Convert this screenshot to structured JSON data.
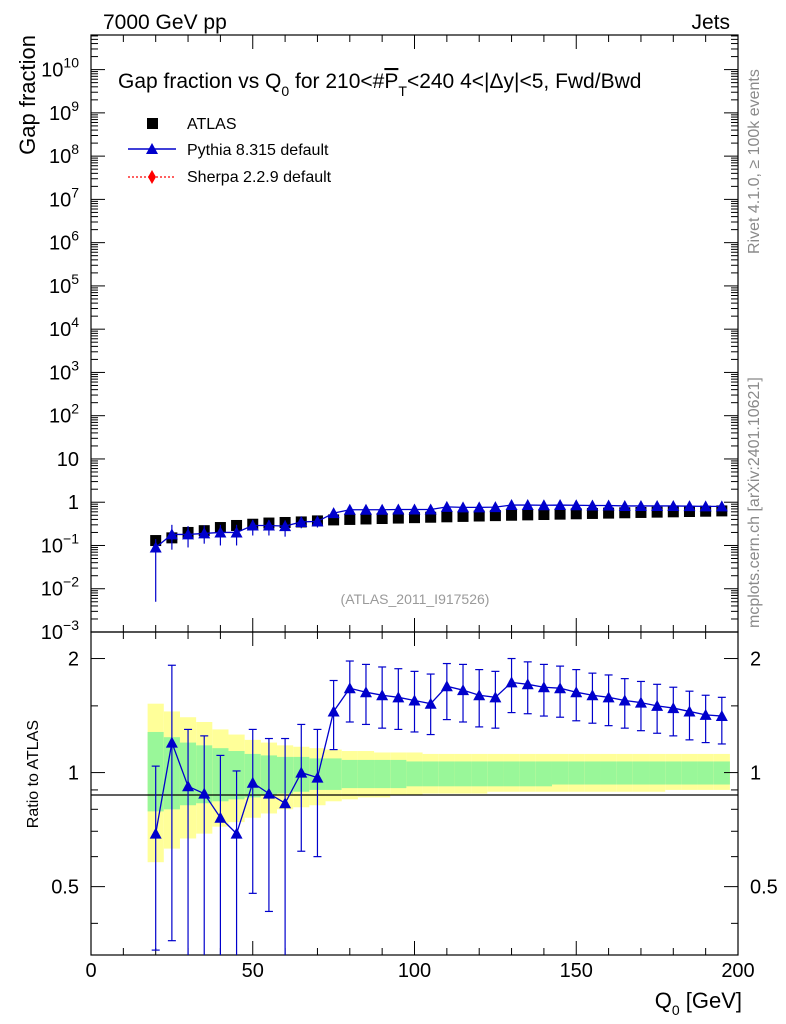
{
  "header": {
    "left": "7000 GeV pp",
    "right": "Jets"
  },
  "side_labels": {
    "rivet": "Rivet 4.1.0, ≥ 100k events",
    "mcplots": "mcplots.cern.ch [arXiv:2401.10621]"
  },
  "chart_data": {
    "type": "scatter",
    "title": "Gap fraction vs Q0 for 210<#PT<240  4<|Δy|<5, Fwd/Bwd",
    "title_parts": {
      "a": "Gap fraction vs Q",
      "sub": "0",
      "b": " for 210<#",
      "c": "P",
      "csub": "T",
      "d": "<240  4<|Δy|<5, Fwd/Bwd"
    },
    "analysis_label": "(ATLAS_2011_I917526)",
    "xlabel": "Q0 [GeV]",
    "xlabel_parts": {
      "a": "Q",
      "sub": "0",
      "b": " [GeV]"
    },
    "ylabel_top": "Gap fraction",
    "ylabel_bottom": "Ratio to ATLAS",
    "xlim": [
      0,
      200
    ],
    "ylim_top_log10": [
      -3,
      10.8
    ],
    "ylim_bottom": [
      0.33,
      2.35
    ],
    "x_ticks": [
      "0",
      "50",
      "100",
      "150",
      "200"
    ],
    "ratio_ticks": [
      "0.5",
      "1",
      "2"
    ],
    "legend": [
      {
        "name": "ATLAS",
        "marker": "square",
        "color": "#000000"
      },
      {
        "name": "Pythia 8.315 default",
        "marker": "triangle",
        "color": "#0000cc"
      },
      {
        "name": "Sherpa 2.2.9 default",
        "marker": "diamond",
        "color": "#ff0000"
      }
    ],
    "x": [
      20,
      25,
      30,
      35,
      40,
      45,
      50,
      55,
      60,
      65,
      70,
      75,
      80,
      85,
      90,
      95,
      100,
      105,
      110,
      115,
      120,
      125,
      130,
      135,
      140,
      145,
      150,
      155,
      160,
      165,
      170,
      175,
      180,
      185,
      190,
      195
    ],
    "atlas": [
      0.13,
      0.15,
      0.2,
      0.22,
      0.26,
      0.29,
      0.31,
      0.33,
      0.34,
      0.35,
      0.37,
      0.39,
      0.4,
      0.41,
      0.42,
      0.43,
      0.44,
      0.45,
      0.46,
      0.47,
      0.48,
      0.49,
      0.5,
      0.51,
      0.52,
      0.53,
      0.54,
      0.55,
      0.56,
      0.57,
      0.58,
      0.59,
      0.6,
      0.61,
      0.62,
      0.63
    ],
    "pythia": [
      0.09,
      0.18,
      0.18,
      0.19,
      0.2,
      0.2,
      0.29,
      0.29,
      0.28,
      0.35,
      0.36,
      0.56,
      0.67,
      0.67,
      0.67,
      0.68,
      0.68,
      0.68,
      0.78,
      0.76,
      0.76,
      0.77,
      0.86,
      0.86,
      0.85,
      0.86,
      0.85,
      0.84,
      0.84,
      0.82,
      0.82,
      0.82,
      0.82,
      0.81,
      0.8,
      0.8
    ],
    "pythia_err_low": [
      0.085,
      0.1,
      0.09,
      0.08,
      0.1,
      0.1,
      0.12,
      0.12,
      0.12,
      0.1,
      0.1,
      0.12,
      0.12,
      0.12,
      0.12,
      0.12,
      0.12,
      0.12,
      0.12,
      0.12,
      0.12,
      0.12,
      0.12,
      0.12,
      0.12,
      0.12,
      0.12,
      0.12,
      0.12,
      0.12,
      0.12,
      0.12,
      0.12,
      0.12,
      0.12,
      0.12
    ],
    "pythia_err_high": [
      0.05,
      0.12,
      0.1,
      0.1,
      0.1,
      0.1,
      0.1,
      0.1,
      0.1,
      0.1,
      0.1,
      0.12,
      0.12,
      0.12,
      0.12,
      0.12,
      0.12,
      0.12,
      0.12,
      0.12,
      0.12,
      0.12,
      0.12,
      0.12,
      0.12,
      0.12,
      0.12,
      0.12,
      0.12,
      0.12,
      0.12,
      0.12,
      0.12,
      0.12,
      0.12,
      0.12
    ],
    "ratio_pythia": [
      0.69,
      1.2,
      0.92,
      0.88,
      0.76,
      0.69,
      0.94,
      0.88,
      0.83,
      1.0,
      0.97,
      1.45,
      1.67,
      1.63,
      1.6,
      1.58,
      1.55,
      1.52,
      1.69,
      1.65,
      1.6,
      1.58,
      1.73,
      1.71,
      1.68,
      1.67,
      1.63,
      1.6,
      1.58,
      1.55,
      1.53,
      1.5,
      1.48,
      1.45,
      1.42,
      1.41
    ],
    "ratio_pythia_err_low": [
      0.35,
      0.84,
      0.65,
      0.55,
      0.5,
      0.45,
      0.46,
      0.45,
      0.5,
      0.38,
      0.37,
      0.3,
      0.31,
      0.29,
      0.29,
      0.28,
      0.27,
      0.26,
      0.31,
      0.29,
      0.28,
      0.27,
      0.29,
      0.28,
      0.27,
      0.27,
      0.26,
      0.25,
      0.25,
      0.24,
      0.24,
      0.23,
      0.23,
      0.23,
      0.22,
      0.22
    ],
    "ratio_pythia_err_high": [
      0.35,
      0.72,
      0.38,
      0.37,
      0.35,
      0.32,
      0.36,
      0.35,
      0.4,
      0.34,
      0.33,
      0.3,
      0.3,
      0.3,
      0.3,
      0.3,
      0.3,
      0.3,
      0.25,
      0.28,
      0.27,
      0.27,
      0.27,
      0.25,
      0.25,
      0.24,
      0.24,
      0.23,
      0.23,
      0.22,
      0.21,
      0.21,
      0.2,
      0.19,
      0.18,
      0.17
    ],
    "band_yellow_low": [
      0.58,
      0.63,
      0.67,
      0.69,
      0.72,
      0.74,
      0.76,
      0.78,
      0.8,
      0.81,
      0.82,
      0.84,
      0.85,
      0.86,
      0.86,
      0.87,
      0.87,
      0.88,
      0.88,
      0.88,
      0.88,
      0.89,
      0.89,
      0.89,
      0.89,
      0.89,
      0.89,
      0.89,
      0.89,
      0.89,
      0.89,
      0.89,
      0.9,
      0.9,
      0.9,
      0.9
    ],
    "band_yellow_high": [
      1.52,
      1.45,
      1.4,
      1.36,
      1.3,
      1.26,
      1.22,
      1.2,
      1.18,
      1.17,
      1.16,
      1.15,
      1.14,
      1.14,
      1.13,
      1.13,
      1.13,
      1.12,
      1.12,
      1.12,
      1.12,
      1.12,
      1.12,
      1.12,
      1.12,
      1.12,
      1.12,
      1.12,
      1.12,
      1.12,
      1.12,
      1.12,
      1.12,
      1.12,
      1.12,
      1.12
    ],
    "band_green_low": [
      0.79,
      0.8,
      0.82,
      0.83,
      0.84,
      0.85,
      0.86,
      0.87,
      0.88,
      0.89,
      0.9,
      0.9,
      0.91,
      0.91,
      0.91,
      0.91,
      0.92,
      0.92,
      0.92,
      0.92,
      0.92,
      0.92,
      0.92,
      0.92,
      0.92,
      0.93,
      0.93,
      0.93,
      0.93,
      0.93,
      0.93,
      0.93,
      0.93,
      0.93,
      0.93,
      0.93
    ],
    "band_green_high": [
      1.28,
      1.24,
      1.2,
      1.18,
      1.16,
      1.14,
      1.12,
      1.11,
      1.1,
      1.1,
      1.09,
      1.09,
      1.08,
      1.08,
      1.08,
      1.08,
      1.07,
      1.07,
      1.07,
      1.07,
      1.07,
      1.07,
      1.07,
      1.07,
      1.07,
      1.07,
      1.07,
      1.07,
      1.07,
      1.07,
      1.07,
      1.07,
      1.07,
      1.07,
      1.07,
      1.07
    ]
  }
}
